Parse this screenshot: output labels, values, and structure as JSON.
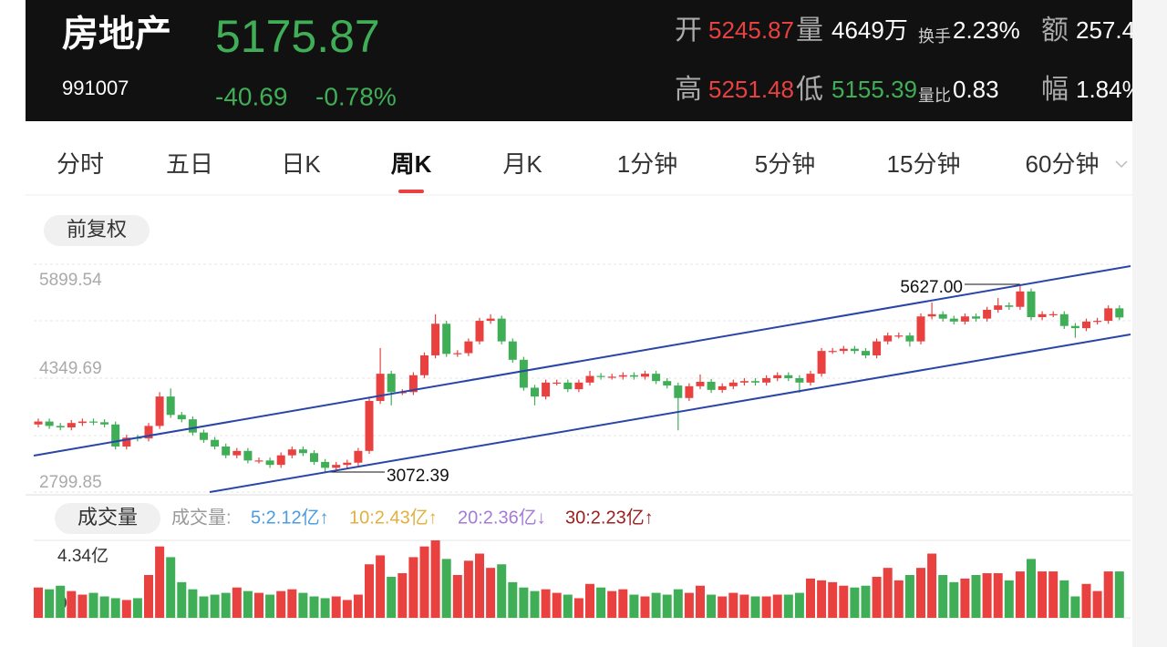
{
  "header": {
    "name": "房地产",
    "code": "991007",
    "price": "5175.87",
    "change": "-40.69",
    "change_pct": "-0.78%",
    "stats": [
      {
        "label": "开",
        "value": "5245.87",
        "color": "#e8413f"
      },
      {
        "label": "量",
        "value": "4649万",
        "color": "#ffffff"
      },
      {
        "label": "换手",
        "value": "2.23%",
        "color": "#ffffff"
      },
      {
        "label": "额",
        "value": "257.4",
        "color": "#ffffff"
      },
      {
        "label": "高",
        "value": "5251.48",
        "color": "#e8413f"
      },
      {
        "label": "低",
        "value": "5155.39",
        "color": "#3fae56"
      },
      {
        "label": "量比",
        "value": "0.83",
        "color": "#ffffff"
      },
      {
        "label": "幅",
        "value": "1.84%",
        "color": "#ffffff"
      }
    ]
  },
  "tabs": [
    "分时",
    "五日",
    "日K",
    "周K",
    "月K",
    "1分钟",
    "5分钟",
    "15分钟",
    "60分钟"
  ],
  "adjust_button": "前复权",
  "volume_button": "成交量",
  "chart_data": [
    {
      "type": "candlestick",
      "ylim": [
        2799.85,
        5899.54
      ],
      "yticks": [
        5899.54,
        4349.69,
        2799.85
      ],
      "up_color": "#e8413f",
      "down_color": "#3fae56",
      "annotations": [
        "5627.00",
        "3072.39"
      ],
      "open": [
        3720,
        3760,
        3700,
        3680,
        3740,
        3760,
        3750,
        3720,
        3420,
        3540,
        3530,
        3700,
        4100,
        3850,
        3790,
        3610,
        3510,
        3420,
        3300,
        3360,
        3230,
        3230,
        3170,
        3300,
        3380,
        3330,
        3210,
        3130,
        3170,
        3200,
        3360,
        4040,
        4410,
        4160,
        4160,
        4390,
        4660,
        5090,
        4680,
        4690,
        4850,
        5130,
        5160,
        4850,
        4600,
        4220,
        4100,
        4290,
        4290,
        4200,
        4290,
        4380,
        4370,
        4370,
        4390,
        4370,
        4410,
        4310,
        4250,
        4080,
        4240,
        4300,
        4190,
        4240,
        4290,
        4310,
        4290,
        4350,
        4390,
        4350,
        4290,
        4410,
        4720,
        4720,
        4750,
        4720,
        4660,
        4850,
        4930,
        4930,
        4850,
        5190,
        5220,
        5160,
        5120,
        5190,
        5160,
        5280,
        5340,
        5320,
        5530,
        5180,
        5220,
        5220,
        5060,
        5030,
        5120,
        5130,
        5300
      ],
      "high": [
        3800,
        3800,
        3740,
        3780,
        3800,
        3800,
        3790,
        3760,
        3580,
        3580,
        3740,
        4160,
        4210,
        3890,
        3830,
        3650,
        3550,
        3460,
        3400,
        3400,
        3270,
        3270,
        3340,
        3420,
        3420,
        3370,
        3250,
        3210,
        3240,
        3400,
        4080,
        4760,
        4450,
        4200,
        4430,
        4700,
        5220,
        5130,
        4730,
        4890,
        5170,
        5220,
        5200,
        4890,
        4640,
        4260,
        4330,
        4330,
        4330,
        4330,
        4450,
        4420,
        4410,
        4430,
        4430,
        4450,
        4450,
        4350,
        4290,
        4280,
        4400,
        4340,
        4280,
        4330,
        4350,
        4350,
        4390,
        4430,
        4430,
        4390,
        4450,
        4760,
        4760,
        4790,
        4790,
        4760,
        4890,
        4970,
        4970,
        4970,
        5230,
        5380,
        5260,
        5200,
        5230,
        5230,
        5320,
        5440,
        5380,
        5627.0,
        5570,
        5260,
        5260,
        5260,
        5100,
        5160,
        5170,
        5340,
        5340
      ],
      "low": [
        3680,
        3660,
        3640,
        3640,
        3700,
        3710,
        3680,
        3380,
        3380,
        3490,
        3490,
        3660,
        3810,
        3750,
        3570,
        3470,
        3380,
        3260,
        3260,
        3190,
        3190,
        3130,
        3130,
        3260,
        3290,
        3170,
        3072.39,
        3090,
        3130,
        3160,
        3320,
        4000,
        3980,
        4120,
        4120,
        4350,
        4620,
        4640,
        4640,
        4650,
        4810,
        5090,
        4810,
        4560,
        4180,
        3980,
        4060,
        4250,
        4160,
        4160,
        4250,
        4330,
        4330,
        4330,
        4330,
        4330,
        4270,
        4210,
        3640,
        4040,
        4200,
        4150,
        4150,
        4200,
        4250,
        4250,
        4250,
        4310,
        4310,
        4150,
        4250,
        4370,
        4680,
        4680,
        4680,
        4620,
        4620,
        4810,
        4890,
        4780,
        4810,
        5150,
        5120,
        5080,
        5080,
        5120,
        5120,
        5240,
        5280,
        5280,
        5140,
        5140,
        5180,
        5020,
        4900,
        4990,
        5080,
        5090,
        5140
      ],
      "close": [
        3760,
        3700,
        3680,
        3740,
        3760,
        3750,
        3720,
        3420,
        3540,
        3530,
        3700,
        4100,
        3850,
        3790,
        3610,
        3510,
        3420,
        3300,
        3360,
        3230,
        3230,
        3170,
        3300,
        3380,
        3330,
        3210,
        3130,
        3170,
        3200,
        3360,
        4040,
        4410,
        4160,
        4160,
        4390,
        4660,
        5090,
        4680,
        4690,
        4850,
        5130,
        5160,
        4850,
        4600,
        4220,
        4100,
        4290,
        4290,
        4200,
        4290,
        4380,
        4370,
        4370,
        4390,
        4370,
        4410,
        4310,
        4250,
        4080,
        4240,
        4300,
        4190,
        4240,
        4290,
        4310,
        4290,
        4350,
        4390,
        4350,
        4290,
        4410,
        4720,
        4720,
        4750,
        4720,
        4660,
        4850,
        4930,
        4930,
        4850,
        5190,
        5220,
        5160,
        5120,
        5190,
        5160,
        5280,
        5340,
        5320,
        5530,
        5180,
        5220,
        5220,
        5060,
        5030,
        5120,
        5130,
        5300,
        5176
      ]
    },
    {
      "type": "bar",
      "title": "成交量:",
      "ylim": [
        0,
        4.34
      ],
      "yticks": [
        {
          "value": 4.34,
          "label": "4.34亿"
        },
        0
      ],
      "indicators": [
        {
          "name": "5:2.12亿↑",
          "color": "#4a9de0"
        },
        {
          "name": "10:2.43亿↑",
          "color": "#e0b040"
        },
        {
          "name": "20:2.36亿↓",
          "color": "#a57bd6"
        },
        {
          "name": "30:2.23亿↑",
          "color": "#9b2020"
        }
      ],
      "values": [
        1.7,
        1.6,
        1.8,
        1.5,
        1.3,
        1.4,
        1.2,
        1.1,
        1.0,
        1.1,
        2.4,
        4.0,
        3.4,
        2.0,
        1.6,
        1.2,
        1.3,
        1.4,
        1.7,
        1.5,
        1.4,
        1.3,
        1.5,
        1.6,
        1.4,
        1.2,
        1.1,
        1.2,
        1.0,
        1.3,
        3.0,
        3.5,
        2.3,
        2.5,
        3.4,
        4.0,
        4.34,
        3.3,
        2.4,
        3.2,
        3.6,
        2.8,
        3.0,
        2.0,
        1.7,
        1.5,
        1.6,
        1.4,
        1.3,
        1.1,
        1.9,
        1.7,
        1.5,
        1.6,
        1.3,
        1.2,
        1.4,
        1.3,
        1.6,
        1.4,
        1.8,
        1.3,
        1.2,
        1.4,
        1.3,
        1.2,
        1.2,
        1.3,
        1.3,
        1.4,
        2.2,
        2.1,
        2.0,
        1.8,
        1.7,
        1.8,
        2.3,
        2.8,
        2.1,
        2.4,
        2.8,
        3.6,
        2.4,
        2.0,
        2.2,
        2.4,
        2.5,
        2.5,
        2.1,
        2.6,
        3.3,
        2.6,
        2.6,
        2.1,
        1.2,
        1.9,
        1.5,
        2.6,
        2.6
      ]
    }
  ]
}
